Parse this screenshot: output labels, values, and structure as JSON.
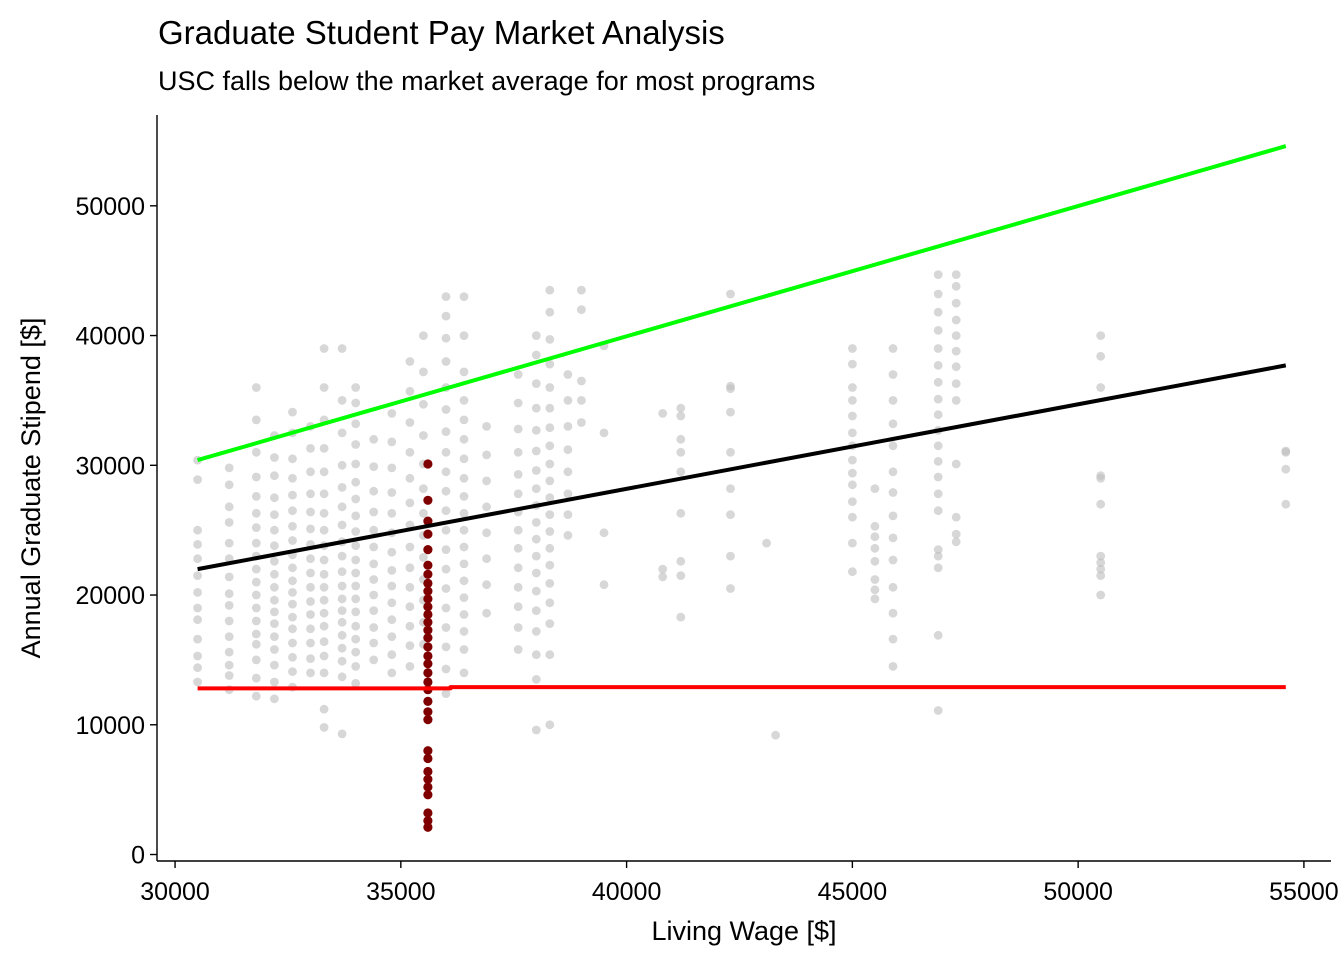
{
  "chart_data": {
    "type": "scatter",
    "title": "Graduate Student Pay Market Analysis",
    "subtitle": "USC falls below the market average for most programs",
    "xlabel": "Living Wage [$]",
    "ylabel": "Annual Graduate Stipend [$]",
    "xlim": [
      29600,
      55600
    ],
    "ylim": [
      -500,
      57000
    ],
    "x_ticks": [
      30000,
      35000,
      40000,
      45000,
      50000,
      55000
    ],
    "y_ticks": [
      0,
      10000,
      20000,
      30000,
      40000,
      50000
    ],
    "grid": false,
    "legend": "none",
    "colors": {
      "market_points": "#bebebe",
      "usc_points": "#7f0000",
      "upper_line": "#00ff00",
      "mean_line": "#000000",
      "living_wage_line": "#ff0000"
    },
    "lines": [
      {
        "role": "upper",
        "color": "#00ff00",
        "points": [
          [
            30500,
            30400
          ],
          [
            54600,
            54600
          ]
        ]
      },
      {
        "role": "mean",
        "color": "#000000",
        "points": [
          [
            30500,
            22000
          ],
          [
            54600,
            37700
          ]
        ]
      },
      {
        "role": "lower",
        "color": "#ff0000",
        "points": [
          [
            30500,
            12800
          ],
          [
            36100,
            12800
          ],
          [
            36100,
            12900
          ],
          [
            54600,
            12900
          ]
        ]
      }
    ],
    "usc_series": {
      "x": 35600,
      "y": [
        30100,
        27300,
        25700,
        24700,
        23500,
        22300,
        21600,
        20900,
        20300,
        19700,
        19100,
        18500,
        17900,
        17300,
        16700,
        16000,
        15300,
        14700,
        14000,
        13300,
        12700,
        11800,
        11000,
        10400,
        8000,
        7400,
        6400,
        5800,
        5200,
        4600,
        3200,
        2600,
        2100
      ]
    },
    "market_columns": [
      {
        "x": 30500,
        "y": [
          30400,
          28900,
          25000,
          23900,
          22800,
          21500,
          20200,
          19000,
          18100,
          16600,
          15300,
          14400,
          13300
        ]
      },
      {
        "x": 31200,
        "y": [
          29800,
          28500,
          26800,
          25600,
          24000,
          22800,
          21400,
          20100,
          19200,
          18000,
          16800,
          15600,
          14600,
          13800,
          12700
        ]
      },
      {
        "x": 31800,
        "y": [
          36000,
          33500,
          31000,
          29100,
          27600,
          26300,
          25200,
          24000,
          23000,
          22000,
          21000,
          20000,
          19000,
          18000,
          17000,
          16200,
          15000,
          13600,
          12200
        ]
      },
      {
        "x": 32200,
        "y": [
          32300,
          30600,
          29200,
          27500,
          26200,
          25000,
          23800,
          22600,
          21600,
          20600,
          19600,
          18700,
          17800,
          16800,
          15800,
          14600,
          13300,
          12000
        ]
      },
      {
        "x": 32600,
        "y": [
          34100,
          32500,
          30500,
          29000,
          27700,
          26500,
          25300,
          24200,
          23100,
          22100,
          21100,
          20200,
          19300,
          18300,
          17400,
          16300,
          15200,
          14100,
          12900
        ]
      },
      {
        "x": 33000,
        "y": [
          33000,
          31300,
          29500,
          27800,
          26400,
          25100,
          23900,
          22800,
          21700,
          20600,
          19500,
          18500,
          17400,
          16300,
          15100,
          14000
        ]
      },
      {
        "x": 33300,
        "y": [
          39000,
          36000,
          33500,
          31300,
          29500,
          27800,
          26300,
          25000,
          23800,
          22700,
          21600,
          20600,
          19600,
          18600,
          17600,
          16400,
          15300,
          14000,
          11200,
          9800
        ]
      },
      {
        "x": 33700,
        "y": [
          39000,
          35000,
          32500,
          30000,
          28300,
          26800,
          25400,
          24100,
          23000,
          21800,
          20700,
          19700,
          18800,
          17900,
          16900,
          15900,
          14900,
          13700,
          9300
        ]
      },
      {
        "x": 34000,
        "y": [
          36000,
          34800,
          33200,
          31600,
          30100,
          28700,
          27400,
          26100,
          24900,
          23800,
          22700,
          21700,
          20700,
          19700,
          18700,
          17600,
          16600,
          15600,
          14500,
          13200
        ]
      },
      {
        "x": 34400,
        "y": [
          32000,
          29900,
          28000,
          26400,
          25000,
          23700,
          22400,
          21200,
          20000,
          18800,
          17500,
          16300,
          15000
        ]
      },
      {
        "x": 34800,
        "y": [
          34000,
          31800,
          29800,
          27900,
          26300,
          24800,
          23300,
          21900,
          20700,
          19400,
          18100,
          16800,
          15400,
          14000
        ]
      },
      {
        "x": 35200,
        "y": [
          38000,
          35700,
          33300,
          31000,
          29000,
          27100,
          25400,
          23700,
          22100,
          20600,
          19100,
          17600,
          16100,
          14500
        ]
      },
      {
        "x": 35500,
        "y": [
          40000,
          37200,
          34700,
          32300,
          30100,
          28200,
          26300,
          24600,
          22900,
          21200,
          19600,
          17900,
          16200
        ]
      },
      {
        "x": 36000,
        "y": [
          43000,
          41500,
          39800,
          38000,
          36000,
          34300,
          32600,
          31000,
          29500,
          28000,
          26500,
          25000,
          23500,
          22000,
          20500,
          19000,
          17500,
          16000,
          14300,
          12400
        ]
      },
      {
        "x": 36400,
        "y": [
          43000,
          40000,
          37200,
          35000,
          33500,
          32000,
          30500,
          29000,
          27600,
          26300,
          25000,
          23700,
          22400,
          21100,
          19800,
          18500,
          17200,
          15800,
          14000
        ]
      },
      {
        "x": 36900,
        "y": [
          33000,
          30800,
          28800,
          26800,
          24800,
          22800,
          20800,
          18600
        ]
      },
      {
        "x": 37600,
        "y": [
          37000,
          34800,
          32800,
          31000,
          29300,
          27800,
          26400,
          25000,
          23600,
          22100,
          20600,
          19100,
          17500,
          15800
        ]
      },
      {
        "x": 38000,
        "y": [
          40000,
          38500,
          36300,
          34400,
          32700,
          31100,
          29600,
          28200,
          26900,
          25600,
          24300,
          23000,
          21700,
          20300,
          18800,
          17200,
          15400,
          13500,
          9600
        ]
      },
      {
        "x": 38300,
        "y": [
          43500,
          41800,
          39700,
          37800,
          36000,
          34400,
          32900,
          31500,
          30100,
          28800,
          27500,
          26200,
          24900,
          23600,
          22300,
          20900,
          19400,
          17800,
          15400,
          10000
        ]
      },
      {
        "x": 38700,
        "y": [
          37000,
          35000,
          33000,
          31200,
          29500,
          27800,
          26200,
          24600
        ]
      },
      {
        "x": 39000,
        "y": [
          43500,
          42000,
          36500,
          35000,
          33300
        ]
      },
      {
        "x": 39500,
        "y": [
          39200,
          32500,
          24800,
          20800
        ]
      },
      {
        "x": 40800,
        "y": [
          34000,
          22000,
          21400
        ]
      },
      {
        "x": 41200,
        "y": [
          34400,
          33800,
          32000,
          31000,
          29500,
          26300,
          22600,
          21500,
          18300
        ]
      },
      {
        "x": 42300,
        "y": [
          43200,
          36100,
          35900,
          34100,
          31000,
          28200,
          26200,
          23000,
          20500
        ]
      },
      {
        "x": 43100,
        "y": [
          24000
        ]
      },
      {
        "x": 43300,
        "y": [
          9200
        ]
      },
      {
        "x": 45000,
        "y": [
          39000,
          37800,
          36000,
          35000,
          33800,
          32500,
          31500,
          30400,
          29400,
          28500,
          27200,
          26000,
          24000,
          21800
        ]
      },
      {
        "x": 45500,
        "y": [
          28200,
          25300,
          24500,
          23600,
          22600,
          21200,
          20400,
          19700
        ]
      },
      {
        "x": 45900,
        "y": [
          39000,
          37000,
          35000,
          33200,
          31500,
          29500,
          27900,
          26100,
          24400,
          22700,
          20600,
          18600,
          16600,
          14500
        ]
      },
      {
        "x": 46900,
        "y": [
          44700,
          43200,
          41800,
          40400,
          39000,
          37700,
          36400,
          35100,
          33900,
          32700,
          31500,
          30300,
          29100,
          27800,
          26500,
          23500,
          23000,
          22100,
          16900,
          11100
        ]
      },
      {
        "x": 47300,
        "y": [
          44700,
          43800,
          42500,
          41200,
          40000,
          38800,
          37600,
          36300,
          35000,
          30100,
          26000,
          24700,
          24100
        ]
      },
      {
        "x": 50500,
        "y": [
          40000,
          38400,
          36000,
          29200,
          29000,
          27000,
          23000,
          22500,
          22000,
          21500,
          20000
        ]
      },
      {
        "x": 54600,
        "y": [
          31100,
          31000,
          29700,
          27000
        ]
      }
    ]
  }
}
